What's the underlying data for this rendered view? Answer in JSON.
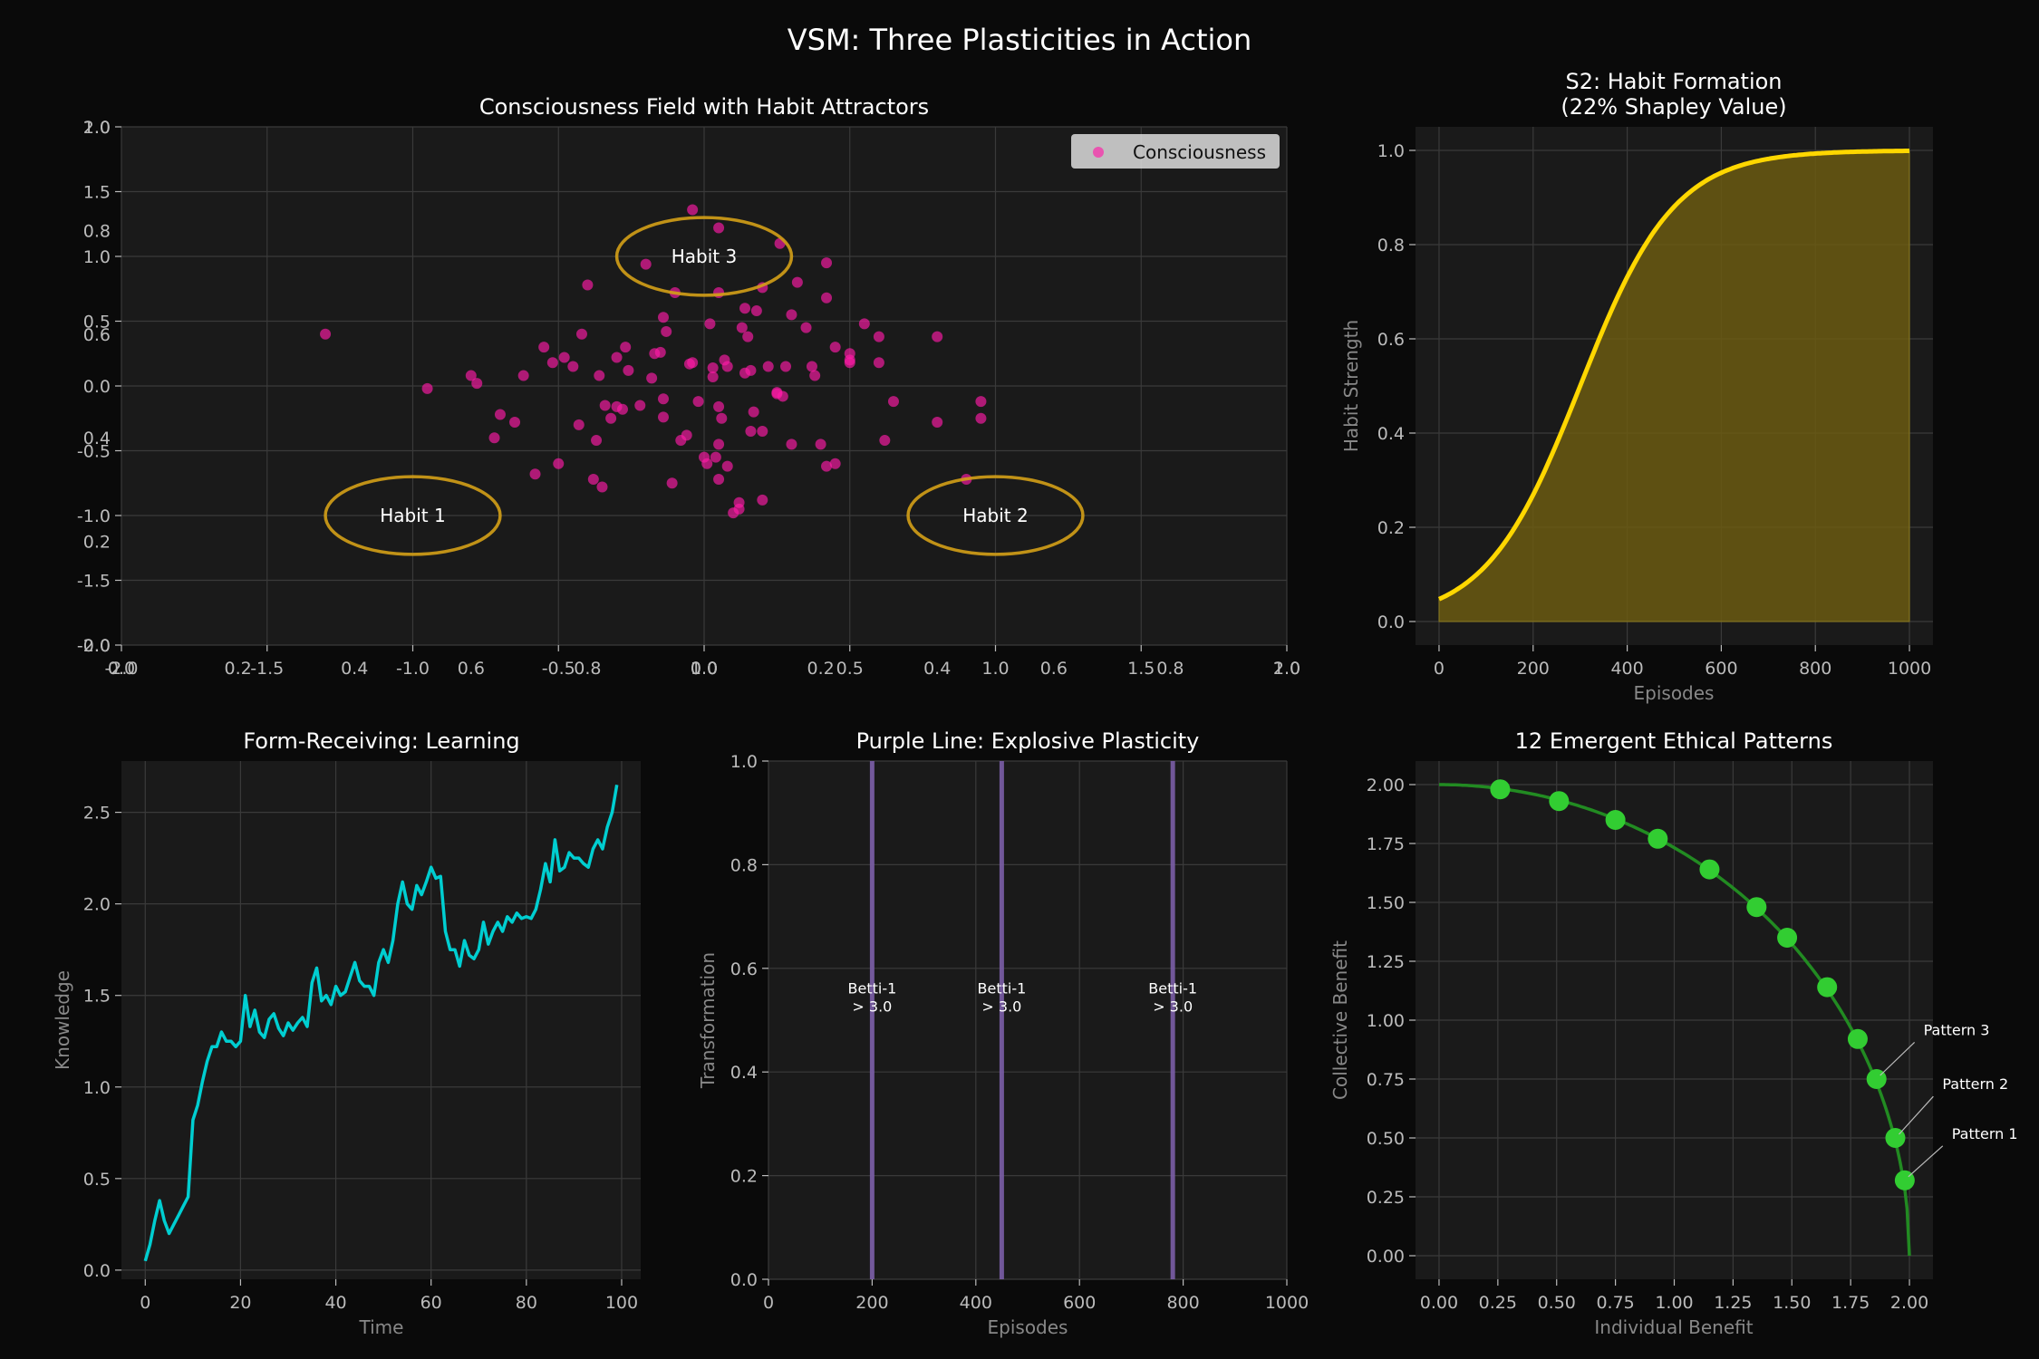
{
  "figure": {
    "title": "VSM: Three Plasticities in Action",
    "colors": {
      "background": "#0a0a0a",
      "panel": "#1a1a1a",
      "grid": "#3a3a3a",
      "axis_label": "#888888",
      "tick": "#bbbbbb",
      "text": "#ffffff"
    }
  },
  "chart_data": [
    {
      "id": "consciousness",
      "type": "scatter",
      "title": "Consciousness Field with Habit Attractors",
      "xlim": [
        -2,
        2
      ],
      "ylim": [
        -2,
        2
      ],
      "xticks": [
        -2.0,
        -1.5,
        -1.0,
        -0.5,
        0.0,
        0.5,
        1.0,
        1.5,
        2.0
      ],
      "yticks": [
        -2.0,
        -1.5,
        -1.0,
        -0.5,
        0.0,
        0.5,
        1.0,
        1.5,
        2.0
      ],
      "overlay_xticks": [
        0.0,
        0.2,
        0.4,
        0.6,
        0.8,
        1.0
      ],
      "overlay_xtick_labels": [
        "0.0",
        "0.2",
        "0.4",
        "0.6",
        "0.8",
        "1.0"
      ],
      "overlay_xtick_labels_right": [
        "0.0",
        "0.2",
        "0.4",
        "0.6",
        "0.8",
        "1.0"
      ],
      "overlay_yticks": [
        0.0,
        0.2,
        0.4,
        0.6,
        0.8,
        1.0
      ],
      "overlay_ytick_labels": [
        "0.0",
        "0.2",
        "0.4",
        "0.6",
        "0.8",
        "1.0"
      ],
      "legend": {
        "label": "Consciousness",
        "placement": "upper-right"
      },
      "point_color": "#ff1aa8",
      "series": [
        {
          "points": [
            [
              -1.3,
              0.4
            ],
            [
              -0.95,
              -0.02
            ],
            [
              -0.8,
              0.08
            ],
            [
              -0.78,
              0.02
            ],
            [
              -0.72,
              -0.4
            ],
            [
              -0.7,
              -0.22
            ],
            [
              -0.65,
              -0.28
            ],
            [
              -0.62,
              0.08
            ],
            [
              -0.58,
              -0.68
            ],
            [
              -0.55,
              0.3
            ],
            [
              -0.52,
              0.18
            ],
            [
              -0.5,
              -0.6
            ],
            [
              -0.48,
              0.22
            ],
            [
              -0.45,
              0.15
            ],
            [
              -0.43,
              -0.3
            ],
            [
              -0.42,
              0.4
            ],
            [
              -0.4,
              0.78
            ],
            [
              -0.38,
              -0.72
            ],
            [
              -0.37,
              -0.42
            ],
            [
              -0.36,
              0.08
            ],
            [
              -0.35,
              -0.78
            ],
            [
              -0.34,
              -0.15
            ],
            [
              -0.32,
              -0.25
            ],
            [
              -0.3,
              -0.16
            ],
            [
              -0.28,
              -0.18
            ],
            [
              -0.27,
              0.3
            ],
            [
              -0.26,
              0.12
            ],
            [
              -0.22,
              -0.15
            ],
            [
              -0.3,
              0.22
            ],
            [
              -0.2,
              0.94
            ],
            [
              -0.18,
              0.06
            ],
            [
              -0.17,
              0.25
            ],
            [
              -0.15,
              0.26
            ],
            [
              -0.14,
              -0.1
            ],
            [
              -0.14,
              -0.24
            ],
            [
              -0.14,
              0.53
            ],
            [
              -0.13,
              0.42
            ],
            [
              -0.11,
              -0.75
            ],
            [
              -0.1,
              0.72
            ],
            [
              -0.08,
              -0.42
            ],
            [
              -0.06,
              -0.38
            ],
            [
              -0.04,
              0.18
            ],
            [
              -0.04,
              1.36
            ],
            [
              -0.02,
              -0.12
            ],
            [
              0.0,
              -0.55
            ],
            [
              0.01,
              -0.6
            ],
            [
              0.02,
              0.48
            ],
            [
              0.03,
              0.14
            ],
            [
              0.04,
              -0.55
            ],
            [
              0.05,
              -0.72
            ],
            [
              0.05,
              1.22
            ],
            [
              0.05,
              -0.16
            ],
            [
              0.05,
              0.72
            ],
            [
              0.06,
              -0.25
            ],
            [
              0.07,
              0.2
            ],
            [
              0.08,
              -0.62
            ],
            [
              0.08,
              0.15
            ],
            [
              0.1,
              -0.98
            ],
            [
              0.12,
              -0.95
            ],
            [
              0.13,
              0.45
            ],
            [
              0.14,
              0.6
            ],
            [
              0.15,
              0.38
            ],
            [
              0.16,
              -0.35
            ],
            [
              0.17,
              -0.2
            ],
            [
              0.18,
              0.58
            ],
            [
              0.2,
              -0.88
            ],
            [
              0.2,
              -0.35
            ],
            [
              0.2,
              0.76
            ],
            [
              0.22,
              0.15
            ],
            [
              0.25,
              -0.05
            ],
            [
              0.26,
              1.1
            ],
            [
              0.27,
              -0.08
            ],
            [
              0.3,
              -0.45
            ],
            [
              0.32,
              0.8
            ],
            [
              0.38,
              0.08
            ],
            [
              0.4,
              -0.45
            ],
            [
              0.42,
              -0.62
            ],
            [
              0.42,
              0.68
            ],
            [
              0.42,
              0.95
            ],
            [
              0.45,
              -0.6
            ],
            [
              0.5,
              0.2
            ],
            [
              0.5,
              0.18
            ],
            [
              0.55,
              0.48
            ],
            [
              0.6,
              0.38
            ],
            [
              0.62,
              -0.42
            ],
            [
              0.65,
              -0.12
            ],
            [
              0.8,
              -0.28
            ],
            [
              0.8,
              0.38
            ],
            [
              0.9,
              -0.72
            ],
            [
              0.95,
              -0.12
            ],
            [
              0.95,
              -0.25
            ],
            [
              0.6,
              0.18
            ],
            [
              0.5,
              0.25
            ],
            [
              0.45,
              0.3
            ],
            [
              0.25,
              -0.06
            ],
            [
              0.28,
              0.15
            ],
            [
              0.05,
              -0.45
            ],
            [
              0.12,
              -0.9
            ],
            [
              -0.05,
              0.17
            ],
            [
              0.3,
              0.55
            ],
            [
              0.35,
              0.45
            ],
            [
              0.14,
              0.1
            ],
            [
              0.37,
              0.15
            ],
            [
              0.03,
              0.07
            ],
            [
              0.16,
              0.12
            ]
          ]
        }
      ],
      "attractors": [
        {
          "label": "Habit 1",
          "center": [
            -1.0,
            -1.0
          ],
          "rx": 0.3,
          "ry": 0.3
        },
        {
          "label": "Habit 2",
          "center": [
            1.0,
            -1.0
          ],
          "rx": 0.3,
          "ry": 0.3
        },
        {
          "label": "Habit 3",
          "center": [
            0.0,
            1.0
          ],
          "rx": 0.3,
          "ry": 0.3
        }
      ],
      "attractor_color": "#d4a017"
    },
    {
      "id": "habit",
      "type": "area",
      "title": "S2: Habit Formation",
      "subtitle": "(22% Shapley Value)",
      "xlabel": "Episodes",
      "ylabel": "Habit Strength",
      "xlim": [
        -50,
        1050
      ],
      "ylim": [
        -0.05,
        1.05
      ],
      "xticks": [
        0,
        200,
        400,
        600,
        800,
        1000
      ],
      "yticks": [
        0.0,
        0.2,
        0.4,
        0.6,
        0.8,
        1.0
      ],
      "ytick_decimals": 1,
      "curve": {
        "form": "logistic",
        "x_start": 0,
        "x_end": 1000,
        "midpoint": 300,
        "rate": 0.01
      },
      "line_color": "#ffd700",
      "fill_color": "#6b5a12"
    },
    {
      "id": "learning",
      "type": "line",
      "title": "Form-Receiving: Learning",
      "xlabel": "Time",
      "ylabel": "Knowledge",
      "xlim": [
        -5,
        104
      ],
      "ylim": [
        -0.05,
        2.78
      ],
      "xticks": [
        0,
        20,
        40,
        60,
        80,
        100
      ],
      "yticks": [
        0.0,
        0.5,
        1.0,
        1.5,
        2.0,
        2.5
      ],
      "ytick_decimals": 1,
      "line_color": "#00ced1",
      "values": [
        0.05,
        0.14,
        0.27,
        0.38,
        0.27,
        0.2,
        0.25,
        0.3,
        0.35,
        0.4,
        0.82,
        0.9,
        1.03,
        1.14,
        1.22,
        1.22,
        1.3,
        1.25,
        1.25,
        1.22,
        1.25,
        1.5,
        1.33,
        1.42,
        1.3,
        1.27,
        1.37,
        1.4,
        1.32,
        1.28,
        1.35,
        1.31,
        1.35,
        1.38,
        1.33,
        1.57,
        1.65,
        1.47,
        1.5,
        1.45,
        1.55,
        1.5,
        1.52,
        1.6,
        1.68,
        1.58,
        1.55,
        1.55,
        1.5,
        1.68,
        1.75,
        1.68,
        1.8,
        2.0,
        2.12,
        2.0,
        1.97,
        2.1,
        2.05,
        2.12,
        2.2,
        2.14,
        2.15,
        1.85,
        1.75,
        1.75,
        1.66,
        1.8,
        1.72,
        1.7,
        1.75,
        1.9,
        1.78,
        1.85,
        1.9,
        1.85,
        1.93,
        1.9,
        1.95,
        1.92,
        1.93,
        1.92,
        1.97,
        2.08,
        2.22,
        2.12,
        2.35,
        2.18,
        2.2,
        2.28,
        2.25,
        2.25,
        2.22,
        2.2,
        2.3,
        2.35,
        2.3,
        2.42,
        2.5,
        2.65
      ]
    },
    {
      "id": "explosive",
      "type": "line",
      "title": "Purple Line: Explosive Plasticity",
      "xlabel": "Episodes",
      "ylabel": "Transformation",
      "xlim": [
        0,
        1000
      ],
      "ylim": [
        0,
        1
      ],
      "xticks": [
        0,
        200,
        400,
        600,
        800,
        1000
      ],
      "yticks": [
        0.0,
        0.2,
        0.4,
        0.6,
        0.8,
        1.0
      ],
      "ytick_decimals": 1,
      "line_color": "#7b5ea7",
      "vlines": [
        {
          "x": 200,
          "label1": "Betti-1",
          "label2": "> 3.0"
        },
        {
          "x": 450,
          "label1": "Betti-1",
          "label2": "> 3.0"
        },
        {
          "x": 780,
          "label1": "Betti-1",
          "label2": "> 3.0"
        }
      ],
      "label_y": 0.52
    },
    {
      "id": "ethical",
      "type": "scatter",
      "title": "12 Emergent Ethical Patterns",
      "xlabel": "Individual Benefit",
      "ylabel": "Collective Benefit",
      "xlim": [
        -0.1,
        2.1
      ],
      "ylim": [
        -0.1,
        2.1
      ],
      "xticks": [
        0.0,
        0.25,
        0.5,
        0.75,
        1.0,
        1.25,
        1.5,
        1.75,
        2.0
      ],
      "yticks": [
        0.0,
        0.25,
        0.5,
        0.75,
        1.0,
        1.25,
        1.5,
        1.75,
        2.0
      ],
      "ytick_decimals": 2,
      "curve": {
        "form": "quarter-circle",
        "radius": 2.0
      },
      "line_color": "#228b22",
      "point_color": "#32cd32",
      "points": [
        [
          0.26,
          1.98
        ],
        [
          0.51,
          1.93
        ],
        [
          0.75,
          1.85
        ],
        [
          0.93,
          1.77
        ],
        [
          1.15,
          1.64
        ],
        [
          1.35,
          1.48
        ],
        [
          1.48,
          1.35
        ],
        [
          1.65,
          1.14
        ],
        [
          1.78,
          0.92
        ],
        [
          1.86,
          0.75
        ],
        [
          1.94,
          0.5
        ],
        [
          1.98,
          0.32
        ]
      ],
      "annotations": [
        {
          "label": "Pattern 1",
          "point": [
            1.98,
            0.32
          ],
          "text_at": [
            2.18,
            0.52
          ]
        },
        {
          "label": "Pattern 2",
          "point": [
            1.94,
            0.5
          ],
          "text_at": [
            2.14,
            0.73
          ]
        },
        {
          "label": "Pattern 3",
          "point": [
            1.86,
            0.75
          ],
          "text_at": [
            2.06,
            0.96
          ]
        }
      ]
    }
  ]
}
